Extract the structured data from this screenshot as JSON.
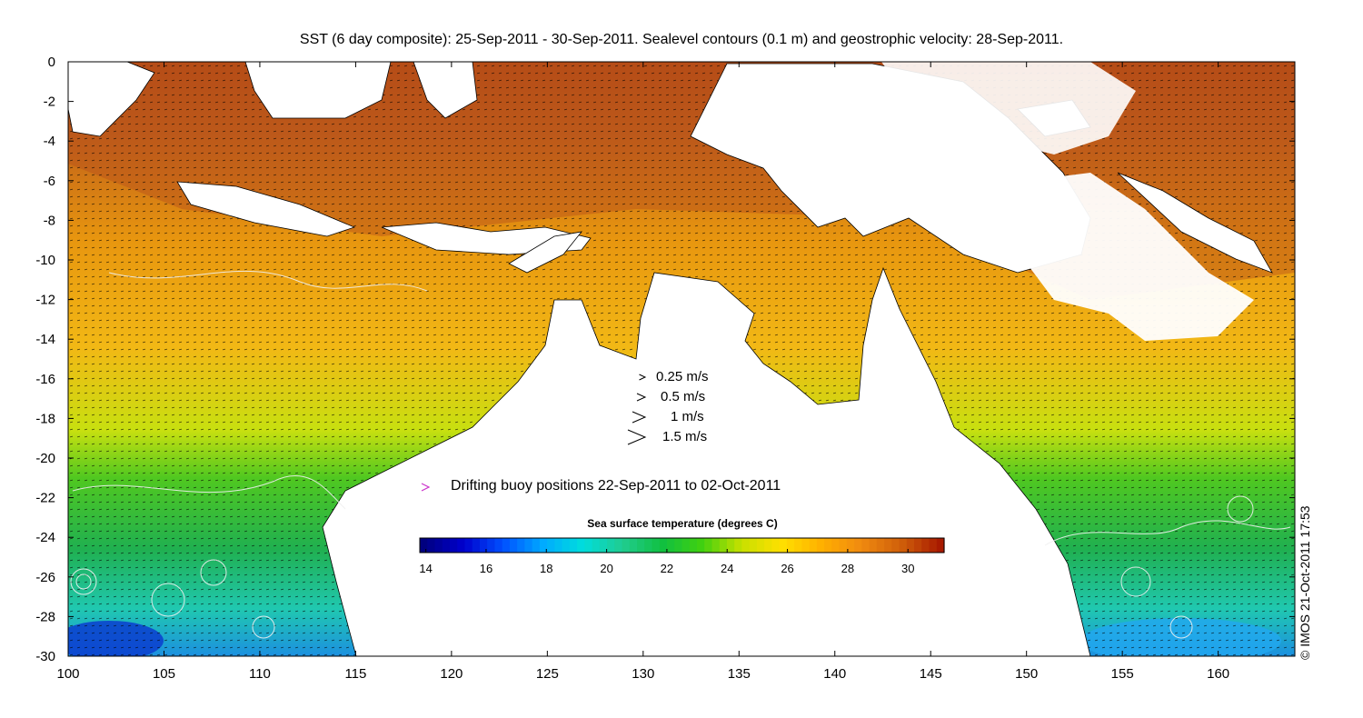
{
  "title": "SST (6 day composite): 25-Sep-2011 - 30-Sep-2011. Sealevel contours (0.1 m) and geostrophic velocity: 28-Sep-2011.",
  "x_axis": {
    "min": 100,
    "max": 164,
    "ticks": [
      "100",
      "105",
      "110",
      "115",
      "120",
      "125",
      "130",
      "135",
      "140",
      "145",
      "150",
      "155",
      "160"
    ]
  },
  "y_axis": {
    "min": -30,
    "max": 0,
    "ticks": [
      "0",
      "-2",
      "-4",
      "-6",
      "-8",
      "-10",
      "-12",
      "-14",
      "-16",
      "-18",
      "-20",
      "-22",
      "-24",
      "-26",
      "-28",
      "-30"
    ]
  },
  "velocity_legend": [
    {
      "label": "0.25 m/s",
      "speed": 0.25
    },
    {
      "label": "0.5 m/s",
      "speed": 0.5
    },
    {
      "label": "1 m/s",
      "speed": 1
    },
    {
      "label": "1.5 m/s",
      "speed": 1.5
    }
  ],
  "buoy_legend": {
    "label": "Drifting buoy positions 22-Sep-2011 to 02-Oct-2011",
    "marker_color": "#cc33cc"
  },
  "colorbar": {
    "title": "Sea surface temperature (degrees C)",
    "min": 13.8,
    "max": 31.2,
    "ticks": [
      "14",
      "16",
      "18",
      "20",
      "22",
      "24",
      "26",
      "28",
      "30"
    ],
    "colormap": [
      "#00007f",
      "#0000cc",
      "#0050ff",
      "#00aaff",
      "#00dddd",
      "#20cc90",
      "#10c040",
      "#40d010",
      "#c8e000",
      "#ffe000",
      "#ffb000",
      "#f08a10",
      "#d0600a",
      "#a81a00"
    ]
  },
  "copyright": "© IMOS 21-Oct-2011 17:53",
  "colors": {
    "land": "#ffffff",
    "vectors": "#000000",
    "contours": "#f0f0f0",
    "coastline": "#000000",
    "cloud": "#ffffff"
  }
}
